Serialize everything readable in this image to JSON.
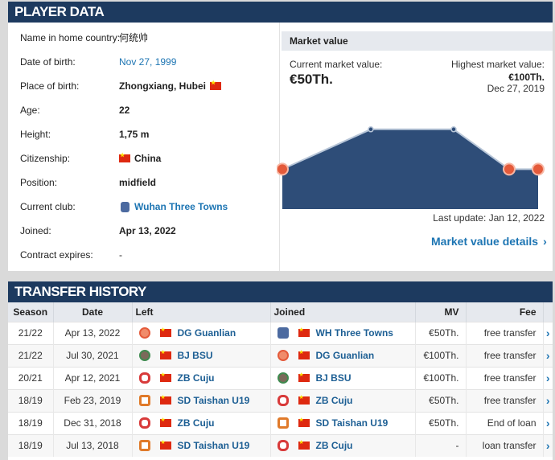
{
  "player_data": {
    "title": "PLAYER DATA",
    "rows": [
      {
        "label": "Name in home country:",
        "value": "何统帅"
      },
      {
        "label": "Date of birth:",
        "value": "Nov 27, 1999"
      },
      {
        "label": "Place of birth:",
        "value": "Zhongxiang, Hubei"
      },
      {
        "label": "Age:",
        "value": "22"
      },
      {
        "label": "Height:",
        "value": "1,75 m"
      },
      {
        "label": "Citizenship:",
        "value": "China"
      },
      {
        "label": "Position:",
        "value": "midfield"
      },
      {
        "label": "Current club:",
        "value": "Wuhan Three Towns"
      },
      {
        "label": "Joined:",
        "value": "Apr 13, 2022"
      },
      {
        "label": "Contract expires:",
        "value": "-"
      }
    ]
  },
  "market_value": {
    "title": "Market value",
    "current_label": "Current market value:",
    "current_value": "€50Th.",
    "highest_label": "Highest market value:",
    "highest_value": "€100Th.",
    "highest_date": "Dec 27, 2019",
    "last_update": "Last update: Jan 12, 2022",
    "details_link": "Market value details",
    "colors": {
      "area": "#2e4d78",
      "line": "#b8c6d8",
      "marker": "#e45a3a"
    }
  },
  "chart_data": {
    "type": "area",
    "series": [
      {
        "values": [
          50,
          100,
          100,
          50,
          50
        ]
      }
    ],
    "ylim": [
      0,
      125
    ]
  },
  "transfer_history": {
    "title": "TRANSFER HISTORY",
    "columns": {
      "season": "Season",
      "date": "Date",
      "left": "Left",
      "joined": "Joined",
      "mv": "MV",
      "fee": "Fee"
    },
    "rows": [
      {
        "season": "21/22",
        "date": "Apr 13, 2022",
        "left": "DG Guanlian",
        "left_crest": "dg",
        "joined": "WH Three Towns",
        "joined_crest": "wh",
        "mv": "€50Th.",
        "fee": "free transfer"
      },
      {
        "season": "21/22",
        "date": "Jul 30, 2021",
        "left": "BJ BSU",
        "left_crest": "bj",
        "joined": "DG Guanlian",
        "joined_crest": "dg",
        "mv": "€100Th.",
        "fee": "free transfer"
      },
      {
        "season": "20/21",
        "date": "Apr 12, 2021",
        "left": "ZB Cuju",
        "left_crest": "zb",
        "joined": "BJ BSU",
        "joined_crest": "bj",
        "mv": "€100Th.",
        "fee": "free transfer"
      },
      {
        "season": "18/19",
        "date": "Feb 23, 2019",
        "left": "SD Taishan U19",
        "left_crest": "sd",
        "joined": "ZB Cuju",
        "joined_crest": "zb",
        "mv": "€50Th.",
        "fee": "free transfer"
      },
      {
        "season": "18/19",
        "date": "Dec 31, 2018",
        "left": "ZB Cuju",
        "left_crest": "zb",
        "joined": "SD Taishan U19",
        "joined_crest": "sd",
        "mv": "€50Th.",
        "fee": "End of loan"
      },
      {
        "season": "18/19",
        "date": "Jul 13, 2018",
        "left": "SD Taishan U19",
        "left_crest": "sd",
        "joined": "ZB Cuju",
        "joined_crest": "zb",
        "mv": "-",
        "fee": "loan transfer"
      }
    ]
  }
}
